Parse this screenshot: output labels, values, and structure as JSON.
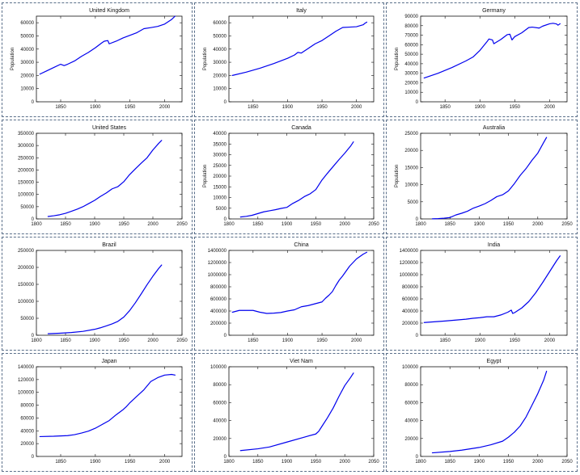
{
  "figure": {
    "line_color": "#0000ee",
    "frame_color": "#111111",
    "panel_border_color": "#5a6f8a"
  },
  "chart_data": [
    {
      "type": "line",
      "title": "United Kingdom",
      "xlabel": "",
      "ylabel": "Population",
      "xlim": [
        1815,
        2025
      ],
      "ylim": [
        0,
        65000
      ],
      "xticks": [
        1850,
        1900,
        1950,
        2000
      ],
      "yticks": [
        0,
        10000,
        20000,
        30000,
        40000,
        50000,
        60000
      ],
      "grid": false,
      "x": [
        1820,
        1830,
        1840,
        1850,
        1855,
        1860,
        1870,
        1880,
        1890,
        1900,
        1910,
        1913,
        1918,
        1920,
        1930,
        1940,
        1945,
        1950,
        1960,
        1970,
        1980,
        1990,
        2000,
        2010,
        2015
      ],
      "values": [
        21000,
        23500,
        26000,
        28500,
        27500,
        28500,
        31000,
        34500,
        37500,
        41000,
        45000,
        46000,
        46500,
        44000,
        46000,
        48500,
        49500,
        50500,
        52500,
        55500,
        56300,
        57200,
        59000,
        62500,
        65000
      ]
    },
    {
      "type": "line",
      "title": "Italy",
      "xlabel": "",
      "ylabel": "Population",
      "xlim": [
        1815,
        2025
      ],
      "ylim": [
        0,
        65000
      ],
      "xticks": [
        1850,
        1900,
        1950,
        2000
      ],
      "yticks": [
        0,
        10000,
        20000,
        30000,
        40000,
        50000,
        60000
      ],
      "grid": false,
      "x": [
        1820,
        1840,
        1860,
        1880,
        1900,
        1910,
        1915,
        1920,
        1930,
        1940,
        1950,
        1960,
        1970,
        1980,
        1990,
        2000,
        2010,
        2012,
        2015
      ],
      "values": [
        20000,
        22500,
        25500,
        29000,
        33000,
        35500,
        37500,
        37000,
        40500,
        44000,
        46500,
        50000,
        53500,
        56400,
        56700,
        57000,
        58500,
        59500,
        60500
      ]
    },
    {
      "type": "line",
      "title": "Germany",
      "xlabel": "",
      "ylabel": "Population",
      "xlim": [
        1815,
        2025
      ],
      "ylim": [
        0,
        90000
      ],
      "xticks": [
        1850,
        1900,
        1950,
        2000
      ],
      "yticks": [
        0,
        10000,
        20000,
        30000,
        40000,
        50000,
        60000,
        70000,
        80000,
        90000
      ],
      "grid": false,
      "x": [
        1820,
        1840,
        1860,
        1880,
        1890,
        1900,
        1910,
        1913,
        1918,
        1920,
        1930,
        1939,
        1943,
        1946,
        1950,
        1960,
        1970,
        1975,
        1985,
        1990,
        2000,
        2005,
        2010,
        2012,
        2015
      ],
      "values": [
        25000,
        30000,
        36000,
        43000,
        47000,
        54000,
        63000,
        66000,
        65000,
        61000,
        65500,
        70500,
        71000,
        65000,
        68500,
        72500,
        78000,
        78500,
        77500,
        79500,
        82000,
        82500,
        81800,
        80500,
        82000
      ]
    },
    {
      "type": "line",
      "title": "United States",
      "xlabel": "",
      "ylabel": "",
      "xlim": [
        1800,
        2050
      ],
      "ylim": [
        0,
        350000
      ],
      "xticks": [
        1800,
        1850,
        1900,
        1950,
        2000,
        2050
      ],
      "yticks": [
        0,
        50000,
        100000,
        150000,
        200000,
        250000,
        300000,
        350000
      ],
      "grid": false,
      "x": [
        1820,
        1830,
        1840,
        1850,
        1860,
        1870,
        1880,
        1890,
        1900,
        1910,
        1920,
        1930,
        1940,
        1950,
        1960,
        1970,
        1980,
        1990,
        2000,
        2010,
        2015
      ],
      "values": [
        10000,
        13000,
        17000,
        23000,
        31000,
        40000,
        50000,
        63000,
        76000,
        92000,
        106000,
        123000,
        132000,
        152000,
        181000,
        205000,
        228000,
        250000,
        282000,
        309000,
        321000
      ]
    },
    {
      "type": "line",
      "title": "Canada",
      "xlabel": "",
      "ylabel": "Population",
      "xlim": [
        1800,
        2050
      ],
      "ylim": [
        0,
        40000
      ],
      "xticks": [
        1800,
        1850,
        1900,
        1950,
        2000,
        2050
      ],
      "yticks": [
        0,
        5000,
        10000,
        15000,
        20000,
        25000,
        30000,
        35000,
        40000
      ],
      "grid": false,
      "x": [
        1820,
        1830,
        1840,
        1850,
        1860,
        1870,
        1880,
        1890,
        1900,
        1910,
        1920,
        1930,
        1940,
        1950,
        1960,
        1970,
        1980,
        1990,
        2000,
        2010,
        2015
      ],
      "values": [
        900,
        1200,
        1700,
        2500,
        3300,
        3800,
        4300,
        4900,
        5400,
        7200,
        8600,
        10400,
        11700,
        13700,
        17900,
        21300,
        24500,
        27700,
        30700,
        34000,
        36000
      ]
    },
    {
      "type": "line",
      "title": "Australia",
      "xlabel": "",
      "ylabel": "Population",
      "xlim": [
        1800,
        2050
      ],
      "ylim": [
        0,
        25000
      ],
      "xticks": [
        1800,
        1850,
        1900,
        1950,
        2000,
        2050
      ],
      "yticks": [
        0,
        5000,
        10000,
        15000,
        20000,
        25000
      ],
      "grid": false,
      "x": [
        1820,
        1830,
        1840,
        1850,
        1860,
        1870,
        1880,
        1890,
        1900,
        1910,
        1920,
        1930,
        1940,
        1950,
        1960,
        1970,
        1980,
        1990,
        2000,
        2010,
        2015
      ],
      "values": [
        35,
        80,
        200,
        400,
        1150,
        1650,
        2250,
        3150,
        3750,
        4450,
        5400,
        6500,
        7050,
        8200,
        10300,
        12700,
        14700,
        17100,
        19200,
        22300,
        23800
      ]
    },
    {
      "type": "line",
      "title": "Brazil",
      "xlabel": "",
      "ylabel": "",
      "xlim": [
        1800,
        2050
      ],
      "ylim": [
        0,
        250000
      ],
      "xticks": [
        1800,
        1850,
        1900,
        1950,
        2000,
        2050
      ],
      "yticks": [
        0,
        50000,
        100000,
        150000,
        200000,
        250000
      ],
      "grid": false,
      "x": [
        1820,
        1840,
        1860,
        1880,
        1900,
        1910,
        1920,
        1930,
        1940,
        1950,
        1960,
        1970,
        1980,
        1990,
        2000,
        2010,
        2015
      ],
      "values": [
        4500,
        6000,
        8000,
        11500,
        17500,
        22000,
        27500,
        33500,
        41000,
        53500,
        72500,
        96000,
        122000,
        149000,
        174000,
        197000,
        207000
      ]
    },
    {
      "type": "line",
      "title": "China",
      "xlabel": "",
      "ylabel": "",
      "xlim": [
        1815,
        2025
      ],
      "ylim": [
        0,
        1400000
      ],
      "xticks": [
        1850,
        1900,
        1950,
        2000
      ],
      "yticks": [
        0,
        200000,
        400000,
        600000,
        800000,
        1000000,
        1200000,
        1400000
      ],
      "grid": false,
      "x": [
        1820,
        1830,
        1850,
        1860,
        1870,
        1880,
        1890,
        1900,
        1910,
        1920,
        1930,
        1940,
        1950,
        1955,
        1960,
        1965,
        1970,
        1975,
        1980,
        1985,
        1990,
        2000,
        2010,
        2015
      ],
      "values": [
        380000,
        410000,
        410000,
        380000,
        360000,
        365000,
        375000,
        400000,
        420000,
        470000,
        490000,
        520000,
        550000,
        610000,
        660000,
        720000,
        820000,
        910000,
        980000,
        1060000,
        1140000,
        1260000,
        1340000,
        1370000
      ]
    },
    {
      "type": "line",
      "title": "India",
      "xlabel": "",
      "ylabel": "",
      "xlim": [
        1815,
        2025
      ],
      "ylim": [
        0,
        1400000
      ],
      "xticks": [
        1850,
        1900,
        1950,
        2000
      ],
      "yticks": [
        0,
        200000,
        400000,
        600000,
        800000,
        1000000,
        1200000,
        1400000
      ],
      "grid": false,
      "x": [
        1820,
        1850,
        1870,
        1880,
        1890,
        1900,
        1910,
        1920,
        1930,
        1940,
        1945,
        1947,
        1950,
        1960,
        1970,
        1980,
        1990,
        2000,
        2010,
        2015
      ],
      "values": [
        210000,
        235000,
        255000,
        265000,
        280000,
        290000,
        305000,
        305000,
        335000,
        380000,
        415000,
        360000,
        375000,
        450000,
        555000,
        700000,
        870000,
        1050000,
        1230000,
        1310000
      ]
    },
    {
      "type": "line",
      "title": "Japan",
      "xlabel": "",
      "ylabel": "",
      "xlim": [
        1815,
        2025
      ],
      "ylim": [
        0,
        140000
      ],
      "xticks": [
        1850,
        1900,
        1950,
        2000
      ],
      "yticks": [
        0,
        20000,
        40000,
        60000,
        80000,
        100000,
        120000,
        140000
      ],
      "grid": false,
      "x": [
        1820,
        1840,
        1860,
        1870,
        1880,
        1890,
        1900,
        1910,
        1920,
        1930,
        1940,
        1945,
        1950,
        1960,
        1970,
        1980,
        1990,
        2000,
        2010,
        2015
      ],
      "values": [
        31000,
        31500,
        32500,
        34000,
        36500,
        39500,
        44000,
        50000,
        56000,
        65000,
        73000,
        78000,
        84000,
        94000,
        104000,
        117000,
        123000,
        127000,
        128000,
        127000
      ]
    },
    {
      "type": "line",
      "title": "Viet Nam",
      "xlabel": "",
      "ylabel": "",
      "xlim": [
        1800,
        2050
      ],
      "ylim": [
        0,
        100000
      ],
      "xticks": [
        1800,
        1850,
        1900,
        1950,
        2000,
        2050
      ],
      "yticks": [
        0,
        20000,
        40000,
        60000,
        80000,
        100000
      ],
      "grid": false,
      "x": [
        1820,
        1850,
        1870,
        1900,
        1930,
        1950,
        1955,
        1960,
        1970,
        1980,
        1990,
        2000,
        2010,
        2015
      ],
      "values": [
        6500,
        8500,
        10500,
        16000,
        21500,
        25000,
        28000,
        33000,
        43000,
        54000,
        67000,
        79000,
        88000,
        93000
      ]
    },
    {
      "type": "line",
      "title": "Egypt",
      "xlabel": "",
      "ylabel": "",
      "xlim": [
        1800,
        2050
      ],
      "ylim": [
        0,
        100000
      ],
      "xticks": [
        1800,
        1850,
        1900,
        1950,
        2000,
        2050
      ],
      "yticks": [
        0,
        20000,
        40000,
        60000,
        80000,
        100000
      ],
      "grid": false,
      "x": [
        1820,
        1850,
        1870,
        1900,
        1920,
        1940,
        1950,
        1960,
        1970,
        1980,
        1990,
        2000,
        2010,
        2015
      ],
      "values": [
        4000,
        5500,
        7000,
        10000,
        13000,
        17000,
        21500,
        27000,
        34000,
        44000,
        57000,
        70000,
        85000,
        95000
      ]
    }
  ]
}
